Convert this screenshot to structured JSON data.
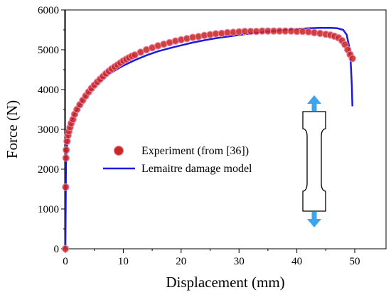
{
  "chart_data": {
    "type": "scatter",
    "title": "",
    "xlabel": "Displacement (mm)",
    "ylabel": "Force (N)",
    "xlim": [
      0,
      55
    ],
    "ylim": [
      0,
      6000
    ],
    "x_ticks": [
      "0",
      "10",
      "20",
      "30",
      "40",
      "50"
    ],
    "y_ticks": [
      "0",
      "1000",
      "2000",
      "3000",
      "4000",
      "5000",
      "6000"
    ],
    "grid": false,
    "legend_position": "center-left",
    "colors": {
      "experiment": "#c8281e",
      "model": "#1a1ae0",
      "arrow": "#3aa6f0"
    },
    "series": [
      {
        "name": "Experiment (from [36])",
        "style": "markers",
        "x": [
          0.0,
          0.05,
          0.1,
          0.15,
          0.3,
          0.45,
          0.6,
          0.8,
          1.0,
          1.3,
          1.6,
          2.0,
          2.5,
          3.0,
          3.5,
          4.0,
          4.5,
          5.0,
          5.5,
          6.0,
          6.5,
          7.0,
          7.5,
          8.0,
          8.5,
          9.0,
          9.5,
          10.0,
          10.5,
          11.0,
          11.5,
          12.0,
          13.0,
          14.0,
          15.0,
          16.0,
          17.0,
          18.0,
          19.0,
          20.0,
          21.0,
          22.0,
          23.0,
          24.0,
          25.0,
          26.0,
          27.0,
          28.0,
          29.0,
          30.0,
          31.0,
          32.0,
          33.0,
          34.0,
          35.0,
          36.0,
          37.0,
          38.0,
          39.0,
          40.0,
          41.0,
          42.0,
          43.0,
          44.0,
          45.0,
          45.8,
          46.5,
          47.2,
          47.8,
          48.3,
          48.8,
          49.2,
          49.6
        ],
        "y": [
          0,
          1550,
          2280,
          2480,
          2700,
          2850,
          2950,
          3050,
          3150,
          3250,
          3380,
          3500,
          3620,
          3730,
          3840,
          3940,
          4030,
          4110,
          4190,
          4260,
          4330,
          4400,
          4460,
          4520,
          4570,
          4620,
          4670,
          4720,
          4760,
          4800,
          4840,
          4870,
          4940,
          5000,
          5050,
          5100,
          5140,
          5180,
          5220,
          5250,
          5280,
          5310,
          5330,
          5360,
          5380,
          5400,
          5410,
          5430,
          5440,
          5450,
          5460,
          5460,
          5460,
          5470,
          5470,
          5470,
          5470,
          5470,
          5470,
          5460,
          5460,
          5450,
          5430,
          5410,
          5390,
          5370,
          5340,
          5300,
          5230,
          5130,
          5000,
          4880,
          4780
        ]
      },
      {
        "name": "Lemaitre damage model",
        "style": "line",
        "x": [
          0.0,
          0.1,
          0.2,
          0.4,
          0.7,
          1.0,
          1.5,
          2.0,
          3.0,
          4.0,
          5.0,
          6.0,
          7.0,
          8.0,
          9.0,
          10.0,
          12.0,
          14.0,
          16.0,
          18.0,
          20.0,
          22.0,
          24.0,
          26.0,
          28.0,
          30.0,
          32.0,
          34.0,
          36.0,
          38.0,
          40.0,
          42.0,
          44.0,
          46.0,
          47.0,
          48.0,
          48.6,
          49.0,
          49.3,
          49.5,
          49.6
        ],
        "y": [
          0,
          2100,
          2450,
          2780,
          3000,
          3160,
          3360,
          3500,
          3740,
          3930,
          4080,
          4210,
          4330,
          4430,
          4520,
          4600,
          4740,
          4860,
          4960,
          5040,
          5110,
          5180,
          5240,
          5290,
          5330,
          5370,
          5410,
          5440,
          5470,
          5500,
          5520,
          5540,
          5550,
          5550,
          5540,
          5500,
          5380,
          5100,
          4700,
          4100,
          3580
        ]
      }
    ]
  },
  "specimen": {
    "icon": "dogbone-tensile-specimen-icon",
    "arrows": "pull-direction-arrows"
  }
}
